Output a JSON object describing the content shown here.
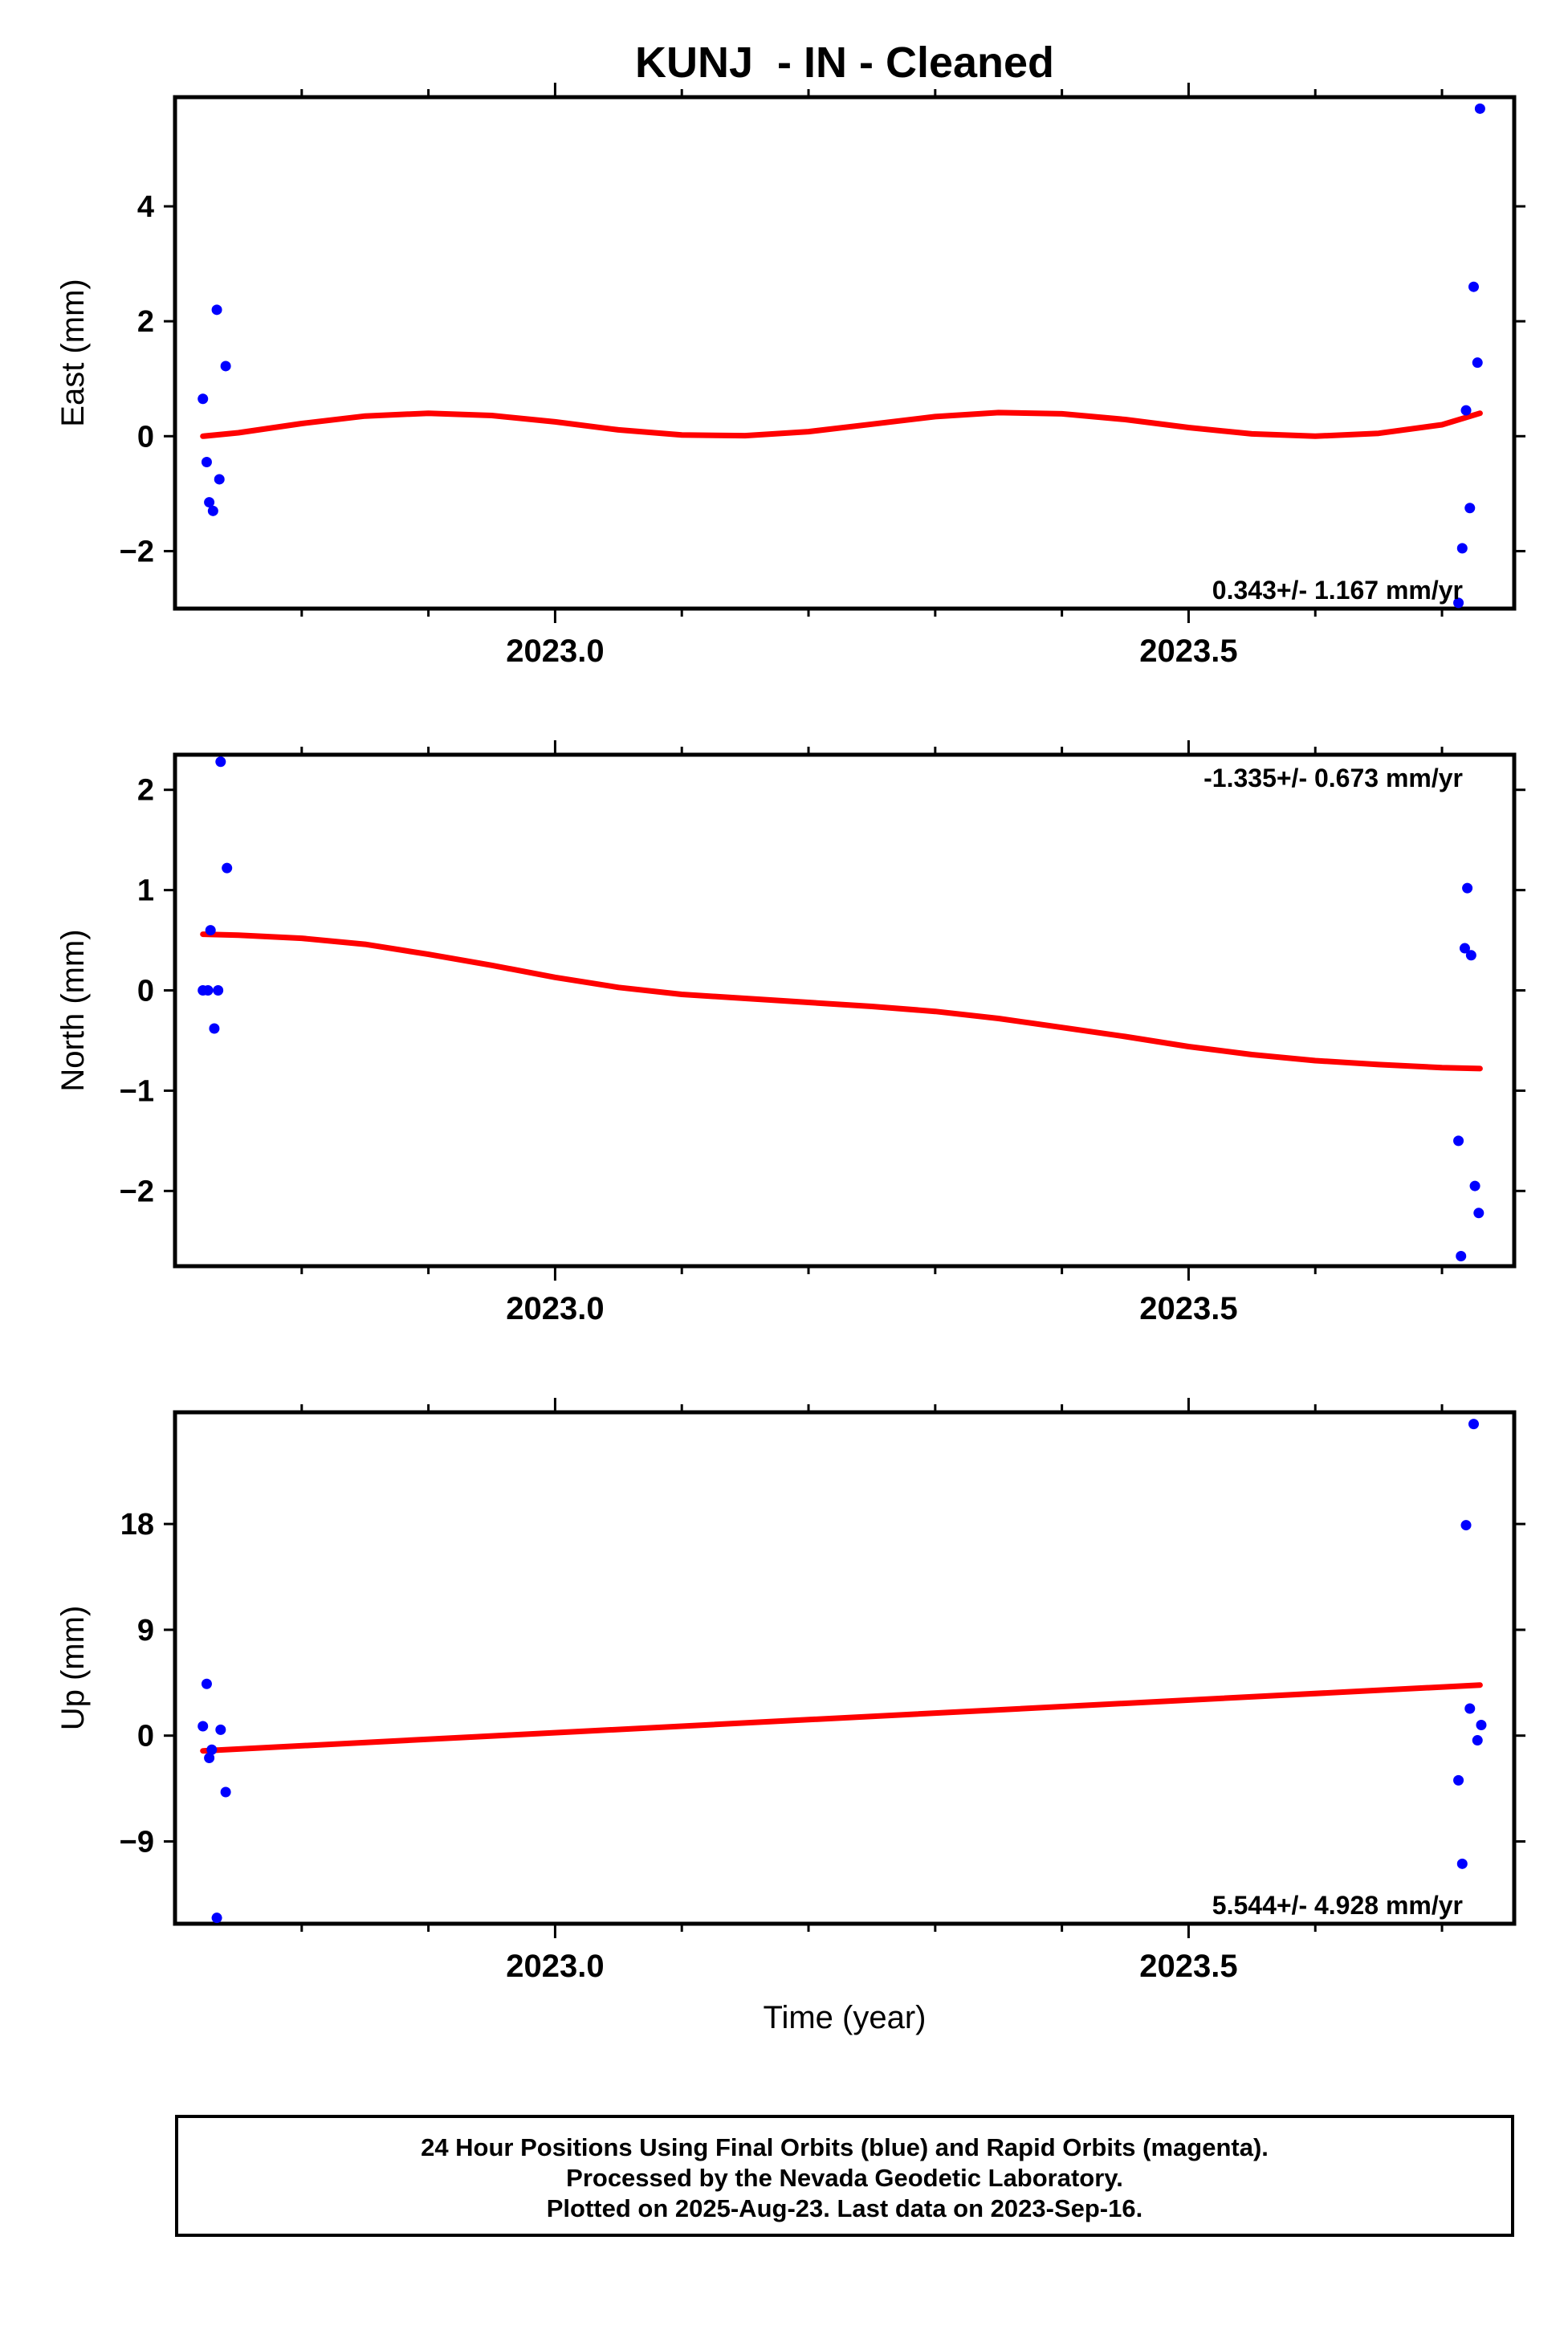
{
  "title": "KUNJ  - IN - Cleaned",
  "xlabel": "Time (year)",
  "footer": {
    "line1": "24 Hour Positions Using Final Orbits (blue) and Rapid Orbits (magenta).",
    "line2": "Processed by the Nevada Geodetic Laboratory.",
    "line3": "Plotted on 2025-Aug-23. Last data on 2023-Sep-16."
  },
  "colors": {
    "points": "#0000ff",
    "fit": "#ff0000",
    "frame": "#000000"
  },
  "chart_data": [
    {
      "type": "scatter",
      "component": "east",
      "ylabel": "East (mm)",
      "xlim": [
        2022.7,
        2023.757
      ],
      "ylim": [
        -3.0,
        5.9
      ],
      "yticks": [
        -2,
        0,
        2,
        4
      ],
      "ytick_labels": [
        "−2",
        "0",
        "2",
        "4"
      ],
      "xticks_labeled": [
        2023.0,
        2023.5
      ],
      "xtick_labels": [
        "2023.0",
        "2023.5"
      ],
      "xticks_minor": [
        2022.8,
        2022.9,
        2023.1,
        2023.2,
        2023.3,
        2023.4,
        2023.6,
        2023.7
      ],
      "rate_text": "0.343+/- 1.167 mm/yr",
      "rate_position": "bottom-right",
      "points": {
        "x": [
          2022.722,
          2022.725,
          2022.727,
          2022.73,
          2022.733,
          2022.735,
          2022.74,
          2023.713,
          2023.716,
          2023.719,
          2023.722,
          2023.725,
          2023.728,
          2023.73
        ],
        "y": [
          0.65,
          -0.45,
          -1.15,
          -1.3,
          2.2,
          -0.75,
          1.22,
          -2.9,
          -1.95,
          0.45,
          -1.25,
          2.6,
          1.28,
          5.7
        ]
      },
      "fit": {
        "x": [
          2022.722,
          2022.75,
          2022.8,
          2022.85,
          2022.9,
          2022.95,
          2023.0,
          2023.05,
          2023.1,
          2023.15,
          2023.2,
          2023.25,
          2023.3,
          2023.35,
          2023.4,
          2023.45,
          2023.5,
          2023.55,
          2023.6,
          2023.65,
          2023.7,
          2023.73
        ],
        "y": [
          0.0,
          0.06,
          0.22,
          0.35,
          0.4,
          0.36,
          0.25,
          0.11,
          0.02,
          0.01,
          0.08,
          0.21,
          0.34,
          0.41,
          0.39,
          0.29,
          0.15,
          0.04,
          0.0,
          0.05,
          0.2,
          0.4
        ]
      }
    },
    {
      "type": "scatter",
      "component": "north",
      "ylabel": "North (mm)",
      "xlim": [
        2022.7,
        2023.757
      ],
      "ylim": [
        -2.75,
        2.35
      ],
      "yticks": [
        -2,
        -1,
        0,
        1,
        2
      ],
      "ytick_labels": [
        "−2",
        "−1",
        "0",
        "1",
        "2"
      ],
      "xticks_labeled": [
        2023.0,
        2023.5
      ],
      "xtick_labels": [
        "2023.0",
        "2023.5"
      ],
      "xticks_minor": [
        2022.8,
        2022.9,
        2023.1,
        2023.2,
        2023.3,
        2023.4,
        2023.6,
        2023.7
      ],
      "rate_text": "-1.335+/- 0.673 mm/yr",
      "rate_position": "top-right",
      "points": {
        "x": [
          2022.722,
          2022.726,
          2022.728,
          2022.731,
          2022.734,
          2022.736,
          2022.741,
          2023.713,
          2023.715,
          2023.718,
          2023.72,
          2023.723,
          2023.726,
          2023.729
        ],
        "y": [
          0.0,
          0.0,
          0.6,
          -0.38,
          0.0,
          2.28,
          1.22,
          -1.5,
          -2.65,
          0.42,
          1.02,
          0.35,
          -1.95,
          -2.22
        ]
      },
      "fit": {
        "x": [
          2022.722,
          2022.75,
          2022.8,
          2022.85,
          2022.9,
          2022.95,
          2023.0,
          2023.05,
          2023.1,
          2023.15,
          2023.2,
          2023.25,
          2023.3,
          2023.35,
          2023.4,
          2023.45,
          2023.5,
          2023.55,
          2023.6,
          2023.65,
          2023.7,
          2023.73
        ],
        "y": [
          0.56,
          0.55,
          0.52,
          0.46,
          0.36,
          0.25,
          0.13,
          0.03,
          -0.04,
          -0.08,
          -0.12,
          -0.16,
          -0.21,
          -0.28,
          -0.37,
          -0.46,
          -0.56,
          -0.64,
          -0.7,
          -0.74,
          -0.77,
          -0.78
        ]
      }
    },
    {
      "type": "scatter",
      "component": "up",
      "ylabel": "Up (mm)",
      "xlim": [
        2022.7,
        2023.757
      ],
      "ylim": [
        -16.0,
        27.5
      ],
      "yticks": [
        -9,
        0,
        9,
        18
      ],
      "ytick_labels": [
        "−9",
        "0",
        "9",
        "18"
      ],
      "xticks_labeled": [
        2023.0,
        2023.5
      ],
      "xtick_labels": [
        "2023.0",
        "2023.5"
      ],
      "xticks_minor": [
        2022.8,
        2022.9,
        2023.1,
        2023.2,
        2023.3,
        2023.4,
        2023.6,
        2023.7
      ],
      "rate_text": "5.544+/- 4.928 mm/yr",
      "rate_position": "bottom-right",
      "points": {
        "x": [
          2022.722,
          2022.725,
          2022.727,
          2022.729,
          2022.733,
          2022.736,
          2022.74,
          2023.713,
          2023.716,
          2023.719,
          2023.722,
          2023.725,
          2023.728,
          2023.731
        ],
        "y": [
          0.8,
          4.4,
          -1.9,
          -1.2,
          -15.5,
          0.5,
          -4.8,
          -3.8,
          -10.9,
          17.9,
          2.3,
          26.5,
          -0.4,
          0.9
        ]
      },
      "fit": {
        "x": [
          2022.722,
          2023.73
        ],
        "y": [
          -1.3,
          4.3
        ]
      }
    }
  ]
}
